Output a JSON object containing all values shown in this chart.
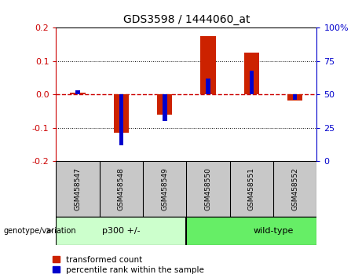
{
  "title": "GDS3598 / 1444060_at",
  "samples": [
    "GSM458547",
    "GSM458548",
    "GSM458549",
    "GSM458550",
    "GSM458551",
    "GSM458552"
  ],
  "red_values": [
    0.005,
    -0.115,
    -0.06,
    0.175,
    0.125,
    -0.018
  ],
  "blue_values_pct": [
    53,
    12,
    30,
    62,
    68,
    46
  ],
  "group1_label": "p300 +/-",
  "group2_label": "wild-type",
  "group1_color": "#CCFFCC",
  "group2_color": "#66EE66",
  "sample_bg_color": "#C8C8C8",
  "ylim_left": [
    -0.2,
    0.2
  ],
  "ylim_right": [
    0,
    100
  ],
  "yticks_left": [
    -0.2,
    -0.1,
    0.0,
    0.1,
    0.2
  ],
  "yticks_right": [
    0,
    25,
    50,
    75,
    100
  ],
  "left_tick_color": "#CC0000",
  "right_tick_color": "#0000CC",
  "zero_line_color": "#CC0000",
  "legend_red_label": "transformed count",
  "legend_blue_label": "percentile rank within the sample",
  "genotype_label": "genotype/variation"
}
